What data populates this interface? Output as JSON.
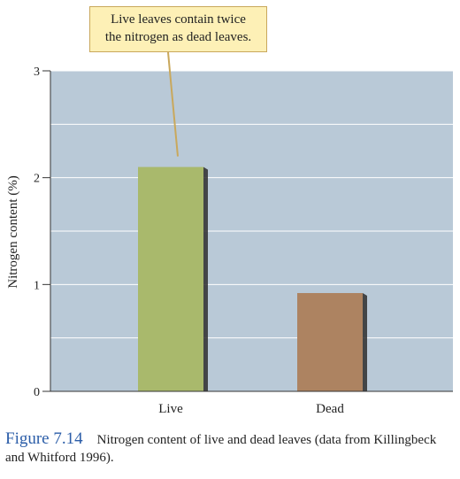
{
  "annotation": {
    "lines": [
      "Live leaves contain twice",
      "the nitrogen as dead leaves."
    ]
  },
  "caption": {
    "label": "Figure 7.14",
    "text": "Nitrogen content of live and dead leaves (data from Killingbeck and Whitford 1996)."
  },
  "colors": {
    "plot_background": "#b9c9d7",
    "live_bar": "#a9b96c",
    "dead_bar": "#ad8361",
    "callout_fill": "#fdf0b6",
    "caption_label": "#2b5da8"
  },
  "chart_data": {
    "type": "bar",
    "title": "",
    "xlabel": "",
    "ylabel": "Nitrogen content (%)",
    "categories": [
      "Live",
      "Dead"
    ],
    "values": [
      2.1,
      0.92
    ],
    "ylim": [
      0,
      3
    ],
    "yticks": [
      0,
      1,
      2,
      3
    ],
    "grid": true
  }
}
